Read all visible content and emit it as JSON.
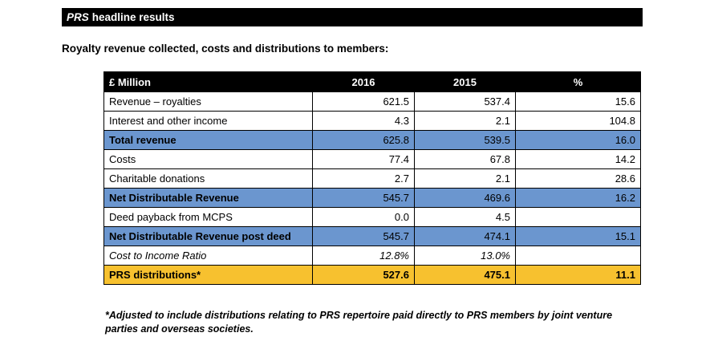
{
  "header": {
    "brand": "PRS",
    "title": "headline results"
  },
  "subtitle": "Royalty revenue collected, costs and distributions to members:",
  "table": {
    "headers": [
      "£ Million",
      "2016",
      "2015",
      "%"
    ],
    "rows": [
      {
        "label": "Revenue – royalties",
        "v2016": "621.5",
        "v2015": "537.4",
        "pct": "15.6",
        "style": "plain"
      },
      {
        "label": "Interest and other income",
        "v2016": "4.3",
        "v2015": "2.1",
        "pct": "104.8",
        "style": "plain"
      },
      {
        "label": "Total revenue",
        "v2016": "625.8",
        "v2015": "539.5",
        "pct": "16.0",
        "style": "highlight"
      },
      {
        "label": "Costs",
        "v2016": "77.4",
        "v2015": "67.8",
        "pct": "14.2",
        "style": "plain"
      },
      {
        "label": "Charitable donations",
        "v2016": "2.7",
        "v2015": "2.1",
        "pct": "28.6",
        "style": "plain"
      },
      {
        "label": "Net Distributable Revenue",
        "v2016": "545.7",
        "v2015": "469.6",
        "pct": "16.2",
        "style": "highlight"
      },
      {
        "label": "Deed payback from MCPS",
        "v2016": "0.0",
        "v2015": "4.5",
        "pct": "",
        "style": "plain"
      },
      {
        "label": "Net Distributable Revenue post deed",
        "v2016": "545.7",
        "v2015": "474.1",
        "pct": "15.1",
        "style": "highlight"
      },
      {
        "label": "Cost to Income Ratio",
        "v2016": "12.8%",
        "v2015": "13.0%",
        "pct": "",
        "style": "italic"
      },
      {
        "label": "PRS distributions*",
        "v2016": "527.6",
        "v2015": "475.1",
        "pct": "11.1",
        "style": "gold"
      }
    ]
  },
  "footnote": "*Adjusted to include distributions relating to PRS repertoire paid directly to PRS members by joint venture parties and overseas societies.",
  "colors": {
    "header_bg": "#000000",
    "highlight_blue": "#6b96cf",
    "gold": "#f7c12f"
  }
}
